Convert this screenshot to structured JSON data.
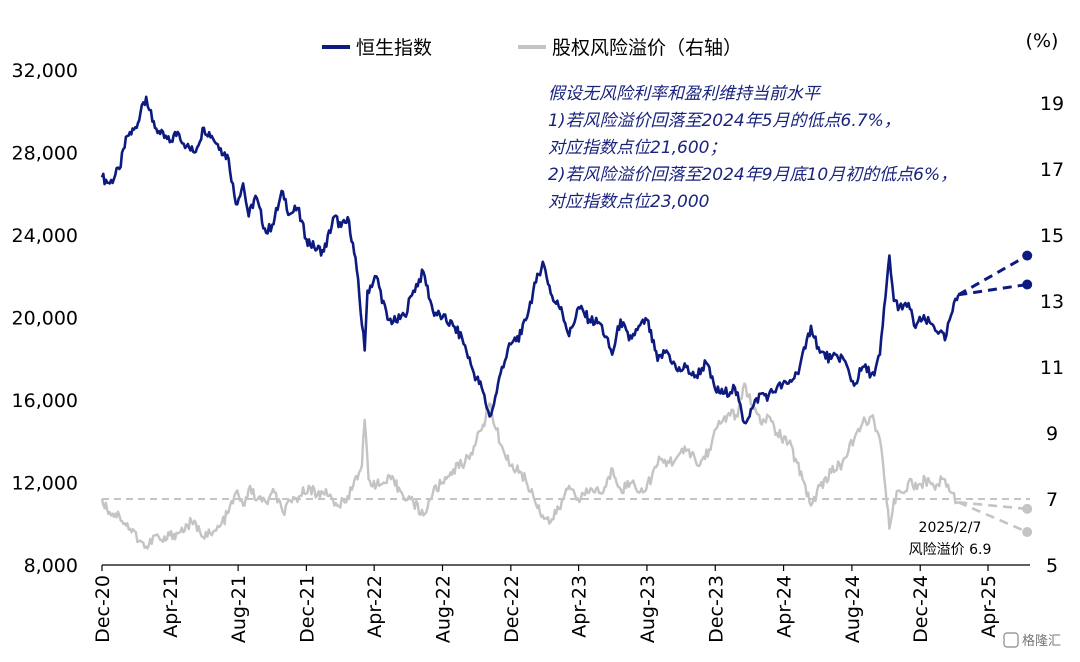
{
  "chart_data": {
    "type": "line",
    "title": "",
    "xlabel": "",
    "ylabel": "",
    "y_right_unit": "(%)",
    "legend_placement": "top-center",
    "grid": false,
    "x_range": [
      "2020-12-01",
      "2025-06-15"
    ],
    "x_tick_labels": [
      "Dec-20",
      "Apr-21",
      "Aug-21",
      "Dec-21",
      "Apr-22",
      "Aug-22",
      "Dec-22",
      "Apr-23",
      "Aug-23",
      "Dec-23",
      "Apr-24",
      "Aug-24",
      "Dec-24",
      "Apr-25"
    ],
    "x_tick_dates": [
      "2020-12-01",
      "2021-04-01",
      "2021-08-01",
      "2021-12-01",
      "2022-04-01",
      "2022-08-01",
      "2022-12-01",
      "2023-04-01",
      "2023-08-01",
      "2023-12-01",
      "2024-04-01",
      "2024-08-01",
      "2024-12-01",
      "2025-04-01"
    ],
    "y_left": {
      "range": [
        8000,
        32000
      ],
      "ticks": [
        "8,000",
        "12,000",
        "16,000",
        "20,000",
        "24,000",
        "28,000",
        "32,000"
      ]
    },
    "y_right": {
      "range": [
        5,
        20
      ],
      "ticks": [
        "5",
        "7",
        "9",
        "11",
        "13",
        "15",
        "17",
        "19"
      ]
    },
    "series": [
      {
        "name": "恒生指数",
        "axis": "left",
        "color": "#0d1a80",
        "points": [
          [
            "2020-12-01",
            26800
          ],
          [
            "2020-12-15",
            26500
          ],
          [
            "2021-01-01",
            27200
          ],
          [
            "2021-01-15",
            28800
          ],
          [
            "2021-02-01",
            29200
          ],
          [
            "2021-02-10",
            30300
          ],
          [
            "2021-02-18",
            30700
          ],
          [
            "2021-03-01",
            29500
          ],
          [
            "2021-03-15",
            28900
          ],
          [
            "2021-04-01",
            28500
          ],
          [
            "2021-04-15",
            29000
          ],
          [
            "2021-05-01",
            28300
          ],
          [
            "2021-05-15",
            28000
          ],
          [
            "2021-06-01",
            29200
          ],
          [
            "2021-06-15",
            28800
          ],
          [
            "2021-07-01",
            28200
          ],
          [
            "2021-07-15",
            27700
          ],
          [
            "2021-07-28",
            25500
          ],
          [
            "2021-08-10",
            26500
          ],
          [
            "2021-08-20",
            24900
          ],
          [
            "2021-09-01",
            25900
          ],
          [
            "2021-09-20",
            24100
          ],
          [
            "2021-10-01",
            24500
          ],
          [
            "2021-10-20",
            26100
          ],
          [
            "2021-11-01",
            25000
          ],
          [
            "2021-11-15",
            25300
          ],
          [
            "2021-12-01",
            23800
          ],
          [
            "2021-12-15",
            23400
          ],
          [
            "2022-01-01",
            23200
          ],
          [
            "2022-01-20",
            24900
          ],
          [
            "2022-02-01",
            24400
          ],
          [
            "2022-02-15",
            24700
          ],
          [
            "2022-03-01",
            22300
          ],
          [
            "2022-03-15",
            18400
          ],
          [
            "2022-03-20",
            21300
          ],
          [
            "2022-04-05",
            22000
          ],
          [
            "2022-04-25",
            19900
          ],
          [
            "2022-05-10",
            19800
          ],
          [
            "2022-05-25",
            20100
          ],
          [
            "2022-06-10",
            21300
          ],
          [
            "2022-06-28",
            22200
          ],
          [
            "2022-07-15",
            20300
          ],
          [
            "2022-08-01",
            20000
          ],
          [
            "2022-08-20",
            19600
          ],
          [
            "2022-09-05",
            19000
          ],
          [
            "2022-09-26",
            17300
          ],
          [
            "2022-10-10",
            16600
          ],
          [
            "2022-10-24",
            15200
          ],
          [
            "2022-11-01",
            15800
          ],
          [
            "2022-11-15",
            17600
          ],
          [
            "2022-12-01",
            18700
          ],
          [
            "2022-12-20",
            19200
          ],
          [
            "2023-01-15",
            21700
          ],
          [
            "2023-01-27",
            22700
          ],
          [
            "2023-02-15",
            20800
          ],
          [
            "2023-03-01",
            20500
          ],
          [
            "2023-03-15",
            19100
          ],
          [
            "2023-04-01",
            20500
          ],
          [
            "2023-04-20",
            19900
          ],
          [
            "2023-05-10",
            19700
          ],
          [
            "2023-05-31",
            18200
          ],
          [
            "2023-06-15",
            19900
          ],
          [
            "2023-06-30",
            18900
          ],
          [
            "2023-07-15",
            19400
          ],
          [
            "2023-08-01",
            19900
          ],
          [
            "2023-08-20",
            17900
          ],
          [
            "2023-09-05",
            18400
          ],
          [
            "2023-09-25",
            17400
          ],
          [
            "2023-10-10",
            17600
          ],
          [
            "2023-10-25",
            17100
          ],
          [
            "2023-11-15",
            17800
          ],
          [
            "2023-12-01",
            16500
          ],
          [
            "2023-12-15",
            16300
          ],
          [
            "2024-01-05",
            16600
          ],
          [
            "2024-01-22",
            14900
          ],
          [
            "2024-02-05",
            15600
          ],
          [
            "2024-02-20",
            16300
          ],
          [
            "2024-03-05",
            16200
          ],
          [
            "2024-03-20",
            16600
          ],
          [
            "2024-04-10",
            16800
          ],
          [
            "2024-04-25",
            17300
          ],
          [
            "2024-05-10",
            18500
          ],
          [
            "2024-05-20",
            19600
          ],
          [
            "2024-06-05",
            18300
          ],
          [
            "2024-06-25",
            18000
          ],
          [
            "2024-07-15",
            18100
          ],
          [
            "2024-08-05",
            16700
          ],
          [
            "2024-08-20",
            17600
          ],
          [
            "2024-09-10",
            17200
          ],
          [
            "2024-09-20",
            18200
          ],
          [
            "2024-09-30",
            21000
          ],
          [
            "2024-10-07",
            23000
          ],
          [
            "2024-10-15",
            20800
          ],
          [
            "2024-10-30",
            20400
          ],
          [
            "2024-11-10",
            20700
          ],
          [
            "2024-11-20",
            19600
          ],
          [
            "2024-12-05",
            19900
          ],
          [
            "2024-12-20",
            19700
          ],
          [
            "2025-01-05",
            19300
          ],
          [
            "2025-01-14",
            18900
          ],
          [
            "2025-01-25",
            20100
          ],
          [
            "2025-02-07",
            21100
          ]
        ]
      },
      {
        "name": "股权风险溢价（右轴）",
        "axis": "right",
        "color": "#c4c4c4",
        "points": [
          [
            "2020-12-01",
            7.0
          ],
          [
            "2020-12-15",
            6.6
          ],
          [
            "2021-01-01",
            6.5
          ],
          [
            "2021-01-20",
            6.1
          ],
          [
            "2021-02-10",
            5.7
          ],
          [
            "2021-02-20",
            5.5
          ],
          [
            "2021-03-05",
            5.9
          ],
          [
            "2021-03-20",
            5.7
          ],
          [
            "2021-04-01",
            5.9
          ],
          [
            "2021-04-20",
            6.0
          ],
          [
            "2021-05-10",
            6.3
          ],
          [
            "2021-05-25",
            6.0
          ],
          [
            "2021-06-15",
            5.9
          ],
          [
            "2021-07-01",
            6.2
          ],
          [
            "2021-07-15",
            6.6
          ],
          [
            "2021-07-28",
            7.2
          ],
          [
            "2021-08-10",
            6.8
          ],
          [
            "2021-08-20",
            7.3
          ],
          [
            "2021-09-05",
            7.0
          ],
          [
            "2021-09-20",
            6.9
          ],
          [
            "2021-10-05",
            7.2
          ],
          [
            "2021-10-20",
            6.6
          ],
          [
            "2021-11-05",
            6.9
          ],
          [
            "2021-11-20",
            7.1
          ],
          [
            "2021-12-05",
            7.4
          ],
          [
            "2021-12-20",
            7.1
          ],
          [
            "2022-01-05",
            7.3
          ],
          [
            "2022-01-20",
            6.8
          ],
          [
            "2022-02-10",
            6.9
          ],
          [
            "2022-02-25",
            7.6
          ],
          [
            "2022-03-10",
            8.0
          ],
          [
            "2022-03-15",
            9.4
          ],
          [
            "2022-03-22",
            7.6
          ],
          [
            "2022-04-10",
            7.4
          ],
          [
            "2022-05-01",
            7.6
          ],
          [
            "2022-05-20",
            7.2
          ],
          [
            "2022-06-10",
            6.9
          ],
          [
            "2022-06-28",
            6.5
          ],
          [
            "2022-07-15",
            7.2
          ],
          [
            "2022-08-01",
            7.5
          ],
          [
            "2022-08-20",
            7.9
          ],
          [
            "2022-09-10",
            8.1
          ],
          [
            "2022-09-26",
            8.6
          ],
          [
            "2022-10-10",
            9.1
          ],
          [
            "2022-10-24",
            9.9
          ],
          [
            "2022-11-05",
            9.1
          ],
          [
            "2022-11-15",
            8.6
          ],
          [
            "2022-12-01",
            8.0
          ],
          [
            "2022-12-20",
            7.8
          ],
          [
            "2023-01-10",
            7.1
          ],
          [
            "2023-01-27",
            6.5
          ],
          [
            "2023-02-10",
            6.3
          ],
          [
            "2023-02-25",
            6.7
          ],
          [
            "2023-03-15",
            7.4
          ],
          [
            "2023-04-05",
            7.0
          ],
          [
            "2023-04-25",
            7.3
          ],
          [
            "2023-05-15",
            7.2
          ],
          [
            "2023-06-01",
            7.9
          ],
          [
            "2023-06-15",
            7.3
          ],
          [
            "2023-07-05",
            7.5
          ],
          [
            "2023-07-25",
            7.2
          ],
          [
            "2023-08-10",
            7.7
          ],
          [
            "2023-08-25",
            8.2
          ],
          [
            "2023-09-10",
            8.1
          ],
          [
            "2023-09-25",
            8.3
          ],
          [
            "2023-10-15",
            8.5
          ],
          [
            "2023-11-01",
            8.0
          ],
          [
            "2023-11-20",
            8.5
          ],
          [
            "2023-12-05",
            9.2
          ],
          [
            "2023-12-25",
            9.6
          ],
          [
            "2024-01-10",
            9.5
          ],
          [
            "2024-01-22",
            10.5
          ],
          [
            "2024-02-05",
            9.8
          ],
          [
            "2024-02-20",
            9.3
          ],
          [
            "2024-03-05",
            9.5
          ],
          [
            "2024-03-20",
            9.0
          ],
          [
            "2024-04-10",
            8.7
          ],
          [
            "2024-04-25",
            8.1
          ],
          [
            "2024-05-10",
            7.4
          ],
          [
            "2024-05-20",
            6.8
          ],
          [
            "2024-06-05",
            7.4
          ],
          [
            "2024-06-25",
            7.8
          ],
          [
            "2024-07-15",
            8.1
          ],
          [
            "2024-08-05",
            8.8
          ],
          [
            "2024-08-20",
            9.3
          ],
          [
            "2024-09-05",
            9.5
          ],
          [
            "2024-09-20",
            8.8
          ],
          [
            "2024-09-30",
            7.3
          ],
          [
            "2024-10-07",
            6.1
          ],
          [
            "2024-10-15",
            7.0
          ],
          [
            "2024-10-30",
            7.2
          ],
          [
            "2024-11-15",
            7.6
          ],
          [
            "2024-11-25",
            7.3
          ],
          [
            "2024-12-10",
            7.6
          ],
          [
            "2024-12-25",
            7.4
          ],
          [
            "2025-01-14",
            7.6
          ],
          [
            "2025-01-25",
            7.2
          ],
          [
            "2025-02-07",
            6.9
          ]
        ]
      }
    ],
    "projections": [
      {
        "axis": "left",
        "color": "#0d1a80",
        "from": [
          "2025-02-07",
          21100
        ],
        "to": [
          "2025-06-10",
          23000
        ]
      },
      {
        "axis": "left",
        "color": "#0d1a80",
        "from": [
          "2025-02-07",
          21100
        ],
        "to": [
          "2025-06-10",
          21600
        ]
      },
      {
        "axis": "right",
        "color": "#c4c4c4",
        "from": [
          "2025-02-07",
          6.9
        ],
        "to": [
          "2025-06-10",
          6.7
        ]
      },
      {
        "axis": "right",
        "color": "#c4c4c4",
        "from": [
          "2025-02-07",
          6.9
        ],
        "to": [
          "2025-06-10",
          6.0
        ]
      }
    ],
    "reference_line": {
      "axis": "right",
      "value": 7.0,
      "color": "#c4c4c4",
      "style": "dashed"
    },
    "annotation_lines": [
      "假设无风险利率和盈利维持当前水平",
      "1)若风险溢价回落至2024年5月的低点6.7%，",
      "对应指数点位21,600；",
      "2)若风险溢价回落至2024年9月底10月初的低点6%，",
      "对应指数点位23,000"
    ],
    "point_note": [
      "2025/2/7",
      "风险溢价 6.9"
    ]
  },
  "watermark": "格隆汇"
}
